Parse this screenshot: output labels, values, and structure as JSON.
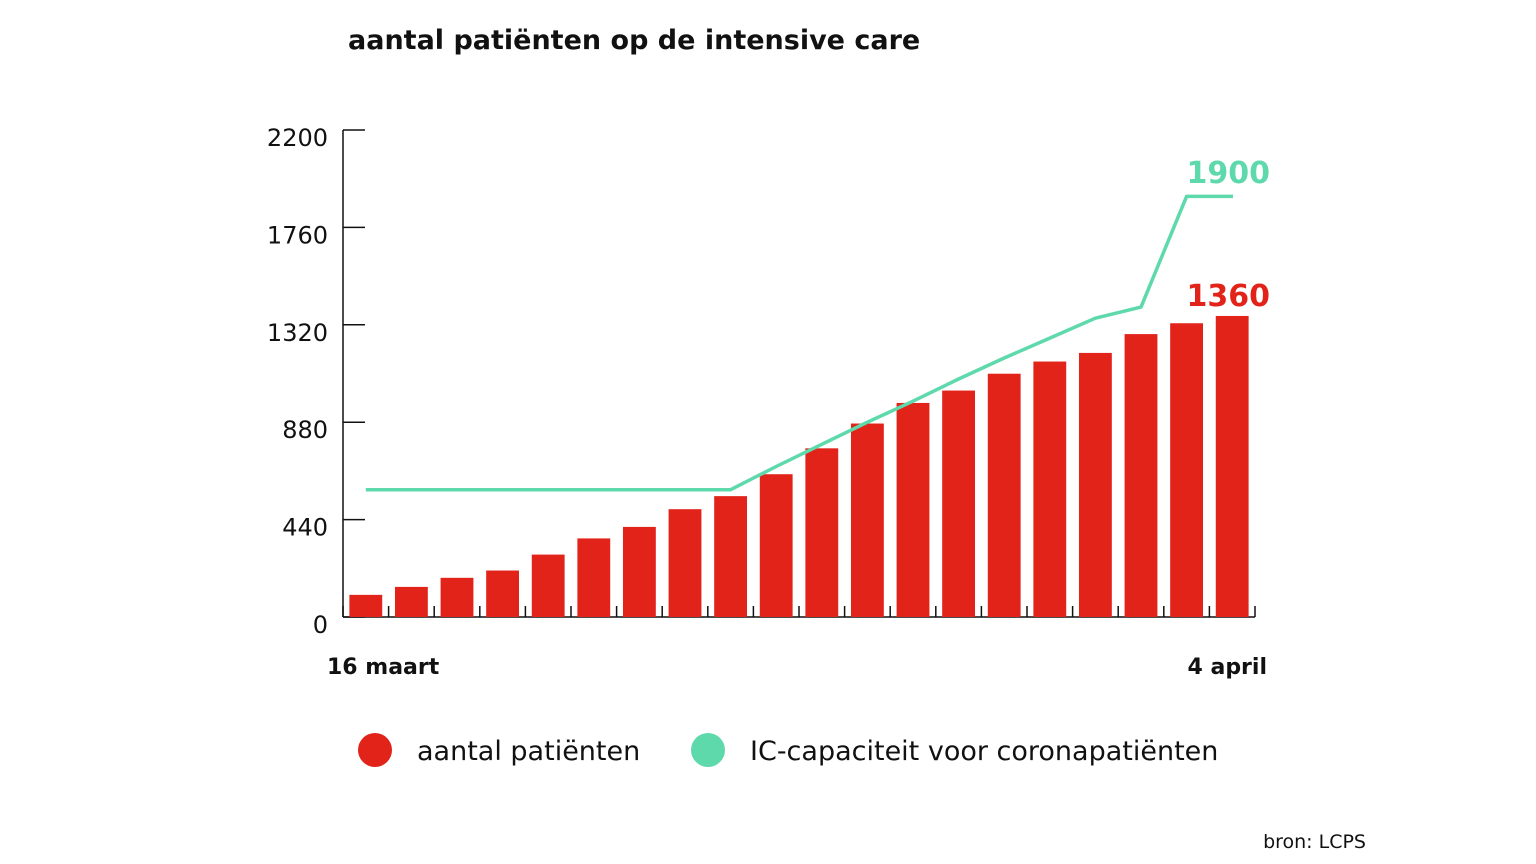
{
  "chart_data": {
    "type": "bar",
    "title": "aantal patiënten op de intensive care",
    "yticks": [
      "0",
      "440",
      "880",
      "1320",
      "1760",
      "2200"
    ],
    "ylim": [
      0,
      2200
    ],
    "x_start_label": "16 maart",
    "x_end_label": "4 april",
    "series": [
      {
        "name": "aantal patiënten",
        "type": "bar",
        "values": [
          100,
          136,
          177,
          210,
          282,
          355,
          407,
          487,
          546,
          645,
          762,
          874,
          967,
          1023,
          1099,
          1154,
          1193,
          1278,
          1327,
          1360
        ],
        "end_label": "1360"
      },
      {
        "name": "IC-capaciteit voor coronapatiënten",
        "type": "line",
        "values": [
          575,
          575,
          575,
          575,
          575,
          575,
          575,
          575,
          575,
          680,
          780,
          880,
          975,
          1075,
          1170,
          1260,
          1350,
          1400,
          1900,
          1900
        ],
        "end_label": "1900"
      }
    ],
    "grid": false,
    "legend_position": "bottom"
  },
  "colors": {
    "bar": "#e2231a",
    "line": "#5ed9ab",
    "axis": "#111111"
  },
  "source": "bron: LCPS"
}
